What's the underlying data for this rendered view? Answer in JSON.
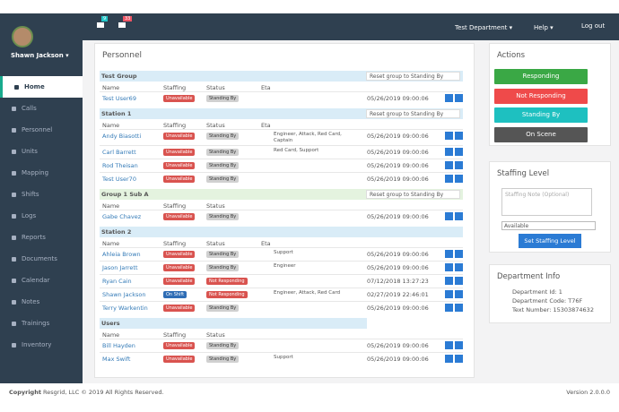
{
  "user": {
    "name": "Shawn Jackson ▾"
  },
  "menu": [
    "Home",
    "Calls",
    "Personnel",
    "Units",
    "Mapping",
    "Shifts",
    "Logs",
    "Reports",
    "Documents",
    "Calendar",
    "Notes",
    "Trainings",
    "Inventory"
  ],
  "topbar": {
    "badges": [
      "9",
      "33"
    ],
    "department": "Test Department ▾",
    "help": "Help ▾",
    "logout": "Log out"
  },
  "personnel": {
    "title": "Personnel",
    "badge_colors": {
      "Unavailable": "#d9534f",
      "Standing By": "#d0d0d0",
      "Not Responding": "#d9534f",
      "On Shift": "#2f6db5"
    },
    "groups": [
      {
        "name": "Test Group",
        "reset": "Reset group to Standing By",
        "columns": [
          "Name",
          "Staffing",
          "Status",
          "Eta"
        ],
        "rows": [
          {
            "name": "Test User69",
            "staffing": "Unavailable",
            "status": "Standing By",
            "time": "05/26/2019 09:00:06"
          }
        ]
      },
      {
        "name": "Station 1",
        "reset": "Reset group to Standing By",
        "columns": [
          "Name",
          "Staffing",
          "Status",
          "Eta"
        ],
        "rows": [
          {
            "name": "Andy Biasotti",
            "staffing": "Unavailable",
            "status": "Standing By",
            "eta": "Engineer, Attack, Red Card, Captain",
            "time": "05/26/2019 09:00:06"
          },
          {
            "name": "Carl Barrett",
            "staffing": "Unavailable",
            "status": "Standing By",
            "eta": "Red Card, Support",
            "time": "05/26/2019 09:00:06"
          },
          {
            "name": "Rod Theisan",
            "staffing": "Unavailable",
            "status": "Standing By",
            "time": "05/26/2019 09:00:06"
          },
          {
            "name": "Test User70",
            "staffing": "Unavailable",
            "status": "Standing By",
            "time": "05/26/2019 09:00:06"
          }
        ]
      },
      {
        "name": "Group 1 Sub A",
        "reset": "Reset group to Standing By",
        "sub": true,
        "columns": [
          "Name",
          "Staffing",
          "Status"
        ],
        "rows": [
          {
            "name": "Gabe Chavez",
            "staffing": "Unavailable",
            "status": "Standing By",
            "time": "05/26/2019 09:00:06"
          }
        ]
      },
      {
        "name": "Station 2",
        "columns": [
          "Name",
          "Staffing",
          "Status",
          "Eta"
        ],
        "rows": [
          {
            "name": "Ahleia Brown",
            "staffing": "Unavailable",
            "status": "Standing By",
            "eta": "Support",
            "time": "05/26/2019 09:00:06"
          },
          {
            "name": "Jason Jarrett",
            "staffing": "Unavailable",
            "status": "Standing By",
            "eta": "Engineer",
            "time": "05/26/2019 09:00:06"
          },
          {
            "name": "Ryan Cain",
            "staffing": "Unavailable",
            "status": "Not Responding",
            "time": "07/12/2018 13:27:23"
          },
          {
            "name": "Shawn Jackson",
            "staffing": "On Shift",
            "status": "Not Responding",
            "eta": "Engineer, Attack, Red Card",
            "time": "02/27/2019 22:46:01"
          },
          {
            "name": "Terry Warkentin",
            "staffing": "Unavailable",
            "status": "Standing By",
            "time": "05/26/2019 09:00:06"
          }
        ]
      },
      {
        "name": "Users",
        "short": true,
        "columns": [
          "Name",
          "Staffing",
          "Status"
        ],
        "rows": [
          {
            "name": "Bill Hayden",
            "staffing": "Unavailable",
            "status": "Standing By",
            "time": "05/26/2019 09:00:06"
          },
          {
            "name": "Max Swift",
            "staffing": "Unavailable",
            "status": "Standing By",
            "eta": "Support",
            "time": "05/26/2019 09:00:06"
          }
        ]
      }
    ]
  },
  "actions": {
    "title": "Actions",
    "buttons": [
      {
        "label": "Responding",
        "color": "#3aa845"
      },
      {
        "label": "Not Responding",
        "color": "#ef4a4a"
      },
      {
        "label": "Standing By",
        "color": "#1ec0c0"
      },
      {
        "label": "On Scene",
        "color": "#555555"
      }
    ]
  },
  "staffing": {
    "title": "Staffing Level",
    "placeholder": "Staffing Note (Optional)",
    "select": "Available",
    "button": "Set Staffing Level"
  },
  "department": {
    "title": "Department Info",
    "lines": [
      "Department Id: 1",
      "Department Code: T76F",
      "Text Number: 15303874632"
    ]
  },
  "footer": {
    "label": "Copyright",
    "text": "Resgrid, LLC © 2019 All Rights Reserved.",
    "version": "Version 2.0.0.0"
  }
}
